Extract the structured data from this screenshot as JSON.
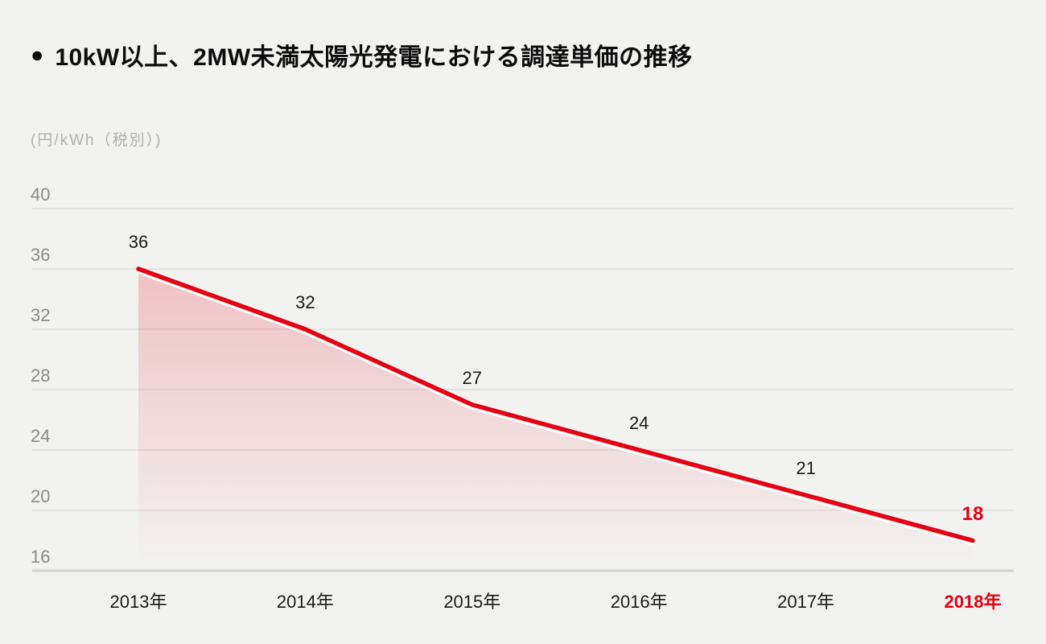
{
  "header": {
    "bullet": "●",
    "title": "10kW以上、2MW未満太陽光発電における調達単価の推移"
  },
  "chart_data": {
    "type": "area",
    "title": "10kW以上、2MW未満太陽光発電における調達単価の推移",
    "unit_label": "(円/kWh（税別）)",
    "categories": [
      "2013年",
      "2014年",
      "2015年",
      "2016年",
      "2017年",
      "2018年"
    ],
    "values": [
      36,
      32,
      27,
      24,
      21,
      18
    ],
    "data_labels": [
      "36",
      "32",
      "27",
      "24",
      "21",
      "18"
    ],
    "yticks": [
      40,
      36,
      32,
      28,
      24,
      20,
      16
    ],
    "ylim": [
      16,
      40
    ],
    "xlabel": "",
    "ylabel": "(円/kWh（税別）)",
    "grid": "horizontal",
    "legend": "none",
    "highlight_last_index": 5,
    "colors": {
      "background": "#f2f2f1",
      "line": "#e50012",
      "line_highlight": "#ffffff",
      "area_top": "rgba(229,0,18,0.20)",
      "area_bottom": "rgba(229,0,18,0)",
      "grid": "#dfdede",
      "baseline": "#d3d2d1",
      "tick_text": "#8b8b8b",
      "unit_text": "#b3b1af",
      "label_text": "#1b1b1b",
      "highlight_text": "#e50012"
    }
  }
}
